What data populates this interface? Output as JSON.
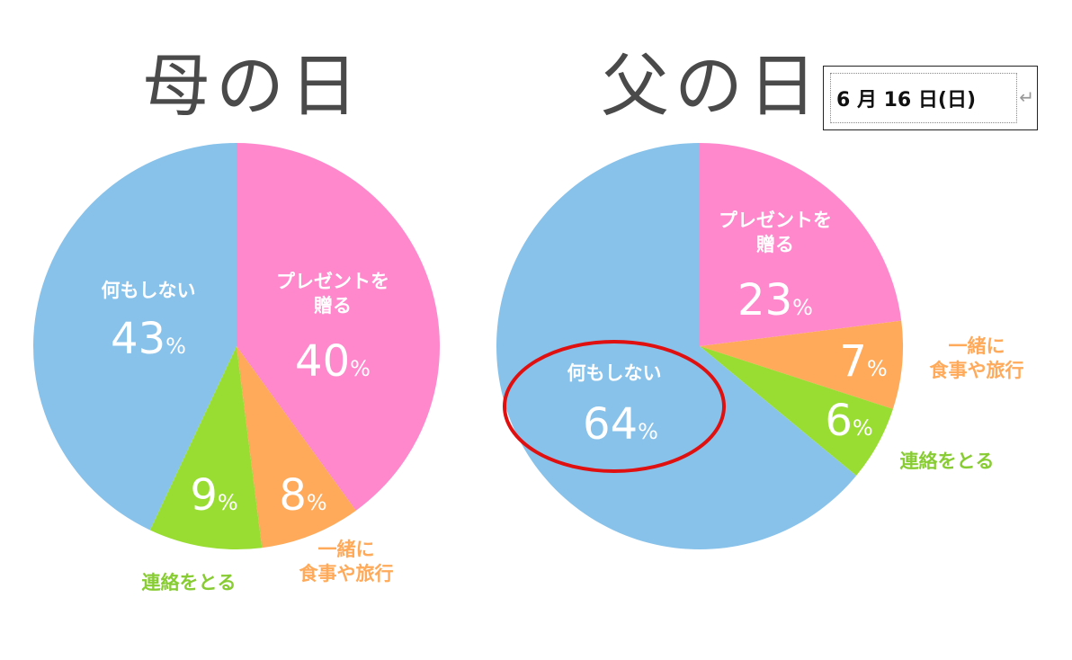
{
  "date_box": {
    "text": "6 月 16 日(日)",
    "return_mark": "↵"
  },
  "chart_data": [
    {
      "type": "pie",
      "title": "母の日",
      "slices": [
        {
          "label": "プレゼントを 贈る",
          "value": 40,
          "color": "#ff88cc",
          "label_color": "#ffffff"
        },
        {
          "label": "一緒に 食事や旅行",
          "value": 8,
          "color": "#ffaa5a",
          "label_color": "#ffaa5a"
        },
        {
          "label": "連絡をとる",
          "value": 9,
          "color": "#99dd33",
          "label_color": "#88cc33"
        },
        {
          "label": "何もしない",
          "value": 43,
          "color": "#88c2ea",
          "label_color": "#ffffff"
        }
      ]
    },
    {
      "type": "pie",
      "title": "父の日",
      "slices": [
        {
          "label": "プレゼントを 贈る",
          "value": 23,
          "color": "#ff88cc",
          "label_color": "#ffffff"
        },
        {
          "label": "一緒に 食事や旅行",
          "value": 7,
          "color": "#ffaa5a",
          "label_color": "#ffaa5a"
        },
        {
          "label": "連絡をとる",
          "value": 6,
          "color": "#99dd33",
          "label_color": "#88cc33"
        },
        {
          "label": "何もしない",
          "value": 64,
          "color": "#88c2ea",
          "label_color": "#ffffff"
        }
      ],
      "highlight": "何もしない",
      "highlight_color": "#e01010"
    }
  ]
}
